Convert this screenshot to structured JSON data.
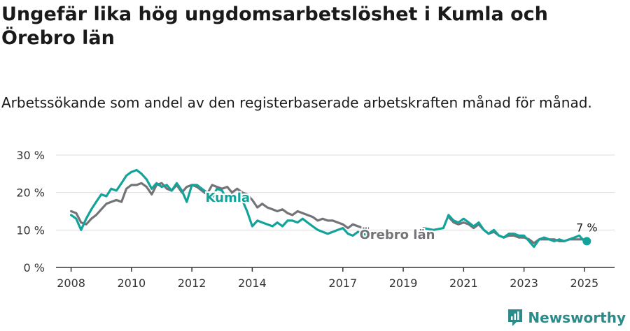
{
  "title": "Ungefär lika hög ungdomsarbetslöshet i Kumla och Örebro län",
  "subtitle": "Arbetssökande som andel av den registerbaserade arbetskraften månad för månad.",
  "brand": "Newsworthy",
  "colors": {
    "kumla": "#12a39a",
    "orebro": "#747378",
    "grid": "#dddddd",
    "axis": "#333333",
    "brand": "#2b8a8a"
  },
  "chart_data": {
    "type": "line",
    "xlim": [
      2007.5,
      2026.0
    ],
    "ylim": [
      0,
      30
    ],
    "y_ticks": [
      0,
      10,
      20,
      30
    ],
    "y_tick_labels": [
      "0 %",
      "10 %",
      "20 %",
      "30 %"
    ],
    "x_ticks": [
      2008,
      2010,
      2012,
      2014,
      2017,
      2019,
      2021,
      2023,
      2025
    ],
    "x_tick_labels": [
      "2008",
      "2010",
      "2012",
      "2014",
      "2017",
      "2019",
      "2021",
      "2023",
      "2025"
    ],
    "grid": true,
    "end_annotation": "7 %",
    "series": [
      {
        "name": "Örebro län",
        "color": "#747378",
        "points": [
          [
            2008.0,
            15.0
          ],
          [
            2008.17,
            14.5
          ],
          [
            2008.33,
            12.0
          ],
          [
            2008.5,
            11.5
          ],
          [
            2008.67,
            13.0
          ],
          [
            2008.83,
            14.0
          ],
          [
            2009.0,
            15.5
          ],
          [
            2009.17,
            17.0
          ],
          [
            2009.33,
            17.5
          ],
          [
            2009.5,
            18.0
          ],
          [
            2009.67,
            17.5
          ],
          [
            2009.83,
            21.0
          ],
          [
            2010.0,
            22.0
          ],
          [
            2010.17,
            22.0
          ],
          [
            2010.33,
            22.5
          ],
          [
            2010.5,
            21.5
          ],
          [
            2010.67,
            19.5
          ],
          [
            2010.83,
            22.0
          ],
          [
            2011.0,
            22.5
          ],
          [
            2011.17,
            21.0
          ],
          [
            2011.33,
            20.5
          ],
          [
            2011.5,
            22.0
          ],
          [
            2011.67,
            20.0
          ],
          [
            2011.83,
            21.5
          ],
          [
            2012.0,
            22.0
          ],
          [
            2012.17,
            21.5
          ],
          [
            2012.33,
            20.5
          ],
          [
            2012.5,
            19.5
          ],
          [
            2012.67,
            22.0
          ],
          [
            2012.83,
            21.5
          ],
          [
            2013.0,
            21.0
          ],
          [
            2013.17,
            21.5
          ],
          [
            2013.33,
            20.0
          ],
          [
            2013.5,
            21.0
          ],
          [
            2013.67,
            20.0
          ],
          [
            2013.83,
            19.5
          ],
          [
            2014.0,
            18.0
          ],
          [
            2014.17,
            16.0
          ],
          [
            2014.33,
            17.0
          ],
          [
            2014.5,
            16.0
          ],
          [
            2014.67,
            15.5
          ],
          [
            2014.83,
            15.0
          ],
          [
            2015.0,
            15.5
          ],
          [
            2015.17,
            14.5
          ],
          [
            2015.33,
            14.0
          ],
          [
            2015.5,
            15.0
          ],
          [
            2015.67,
            14.5
          ],
          [
            2015.83,
            14.0
          ],
          [
            2016.0,
            13.5
          ],
          [
            2016.17,
            12.5
          ],
          [
            2016.33,
            13.0
          ],
          [
            2016.5,
            12.5
          ],
          [
            2016.67,
            12.5
          ],
          [
            2016.83,
            12.0
          ],
          [
            2017.0,
            11.5
          ],
          [
            2017.17,
            10.5
          ],
          [
            2017.33,
            11.5
          ],
          [
            2017.5,
            11.0
          ],
          [
            2017.67,
            10.5
          ],
          [
            2017.83,
            10.5
          ],
          [
            2020.5,
            13.5
          ],
          [
            2020.67,
            12.0
          ],
          [
            2020.83,
            11.5
          ],
          [
            2021.0,
            12.0
          ],
          [
            2021.17,
            11.5
          ],
          [
            2021.33,
            10.5
          ],
          [
            2021.5,
            11.5
          ],
          [
            2021.67,
            10.0
          ],
          [
            2021.83,
            9.0
          ],
          [
            2022.0,
            9.5
          ],
          [
            2022.17,
            8.5
          ],
          [
            2022.33,
            8.0
          ],
          [
            2022.5,
            8.5
          ],
          [
            2022.67,
            8.5
          ],
          [
            2022.83,
            8.0
          ],
          [
            2023.0,
            8.0
          ],
          [
            2023.17,
            7.5
          ],
          [
            2023.33,
            6.5
          ],
          [
            2023.5,
            7.5
          ],
          [
            2023.67,
            7.5
          ],
          [
            2023.83,
            7.5
          ],
          [
            2024.0,
            7.5
          ],
          [
            2024.17,
            7.0
          ],
          [
            2024.33,
            7.0
          ],
          [
            2024.5,
            7.5
          ],
          [
            2024.67,
            7.5
          ],
          [
            2024.83,
            7.5
          ],
          [
            2025.0,
            7.5
          ],
          [
            2025.08,
            7.5
          ]
        ]
      },
      {
        "name": "Kumla",
        "color": "#12a39a",
        "points": [
          [
            2008.0,
            14.0
          ],
          [
            2008.17,
            13.0
          ],
          [
            2008.33,
            10.0
          ],
          [
            2008.5,
            13.0
          ],
          [
            2008.67,
            15.5
          ],
          [
            2008.83,
            17.5
          ],
          [
            2009.0,
            19.5
          ],
          [
            2009.17,
            19.0
          ],
          [
            2009.33,
            21.0
          ],
          [
            2009.5,
            20.5
          ],
          [
            2009.67,
            22.5
          ],
          [
            2009.83,
            24.5
          ],
          [
            2010.0,
            25.5
          ],
          [
            2010.17,
            26.0
          ],
          [
            2010.33,
            25.0
          ],
          [
            2010.5,
            23.5
          ],
          [
            2010.67,
            21.0
          ],
          [
            2010.83,
            22.5
          ],
          [
            2011.0,
            21.5
          ],
          [
            2011.17,
            22.0
          ],
          [
            2011.33,
            20.5
          ],
          [
            2011.5,
            22.5
          ],
          [
            2011.67,
            20.5
          ],
          [
            2011.83,
            17.5
          ],
          [
            2012.0,
            22.0
          ],
          [
            2012.17,
            22.0
          ],
          [
            2012.33,
            21.0
          ],
          [
            2012.5,
            20.0
          ],
          [
            2012.67,
            18.5
          ],
          [
            2012.83,
            21.0
          ],
          [
            2013.0,
            20.5
          ],
          [
            2013.17,
            18.0
          ],
          [
            2013.33,
            19.5
          ],
          [
            2013.5,
            18.5
          ],
          [
            2013.67,
            18.0
          ],
          [
            2013.83,
            15.0
          ],
          [
            2014.0,
            11.0
          ],
          [
            2014.17,
            12.5
          ],
          [
            2014.33,
            12.0
          ],
          [
            2014.5,
            11.5
          ],
          [
            2014.67,
            11.0
          ],
          [
            2014.83,
            12.0
          ],
          [
            2015.0,
            11.0
          ],
          [
            2015.17,
            12.5
          ],
          [
            2015.33,
            12.5
          ],
          [
            2015.5,
            12.0
          ],
          [
            2015.67,
            13.0
          ],
          [
            2015.83,
            12.0
          ],
          [
            2016.0,
            11.0
          ],
          [
            2016.17,
            10.0
          ],
          [
            2016.33,
            9.5
          ],
          [
            2016.5,
            9.0
          ],
          [
            2016.67,
            9.5
          ],
          [
            2016.83,
            10.0
          ],
          [
            2017.0,
            10.5
          ],
          [
            2017.17,
            9.0
          ],
          [
            2017.33,
            8.5
          ],
          [
            2017.5,
            9.5
          ],
          [
            2017.67,
            9.0
          ],
          [
            2017.83,
            8.5
          ],
          [
            2019.67,
            10.5
          ],
          [
            2020.0,
            10.0
          ],
          [
            2020.33,
            10.5
          ],
          [
            2020.5,
            14.0
          ],
          [
            2020.67,
            12.5
          ],
          [
            2020.83,
            12.0
          ],
          [
            2021.0,
            13.0
          ],
          [
            2021.17,
            12.0
          ],
          [
            2021.33,
            11.0
          ],
          [
            2021.5,
            12.0
          ],
          [
            2021.67,
            10.0
          ],
          [
            2021.83,
            9.0
          ],
          [
            2022.0,
            10.0
          ],
          [
            2022.17,
            8.5
          ],
          [
            2022.33,
            8.0
          ],
          [
            2022.5,
            9.0
          ],
          [
            2022.67,
            9.0
          ],
          [
            2022.83,
            8.5
          ],
          [
            2023.0,
            8.5
          ],
          [
            2023.17,
            7.0
          ],
          [
            2023.33,
            5.5
          ],
          [
            2023.5,
            7.5
          ],
          [
            2023.67,
            8.0
          ],
          [
            2023.83,
            7.5
          ],
          [
            2024.0,
            7.0
          ],
          [
            2024.17,
            7.5
          ],
          [
            2024.33,
            7.0
          ],
          [
            2024.5,
            7.5
          ],
          [
            2024.67,
            8.0
          ],
          [
            2024.83,
            8.5
          ],
          [
            2025.0,
            7.0
          ],
          [
            2025.08,
            7.0
          ]
        ]
      }
    ]
  }
}
